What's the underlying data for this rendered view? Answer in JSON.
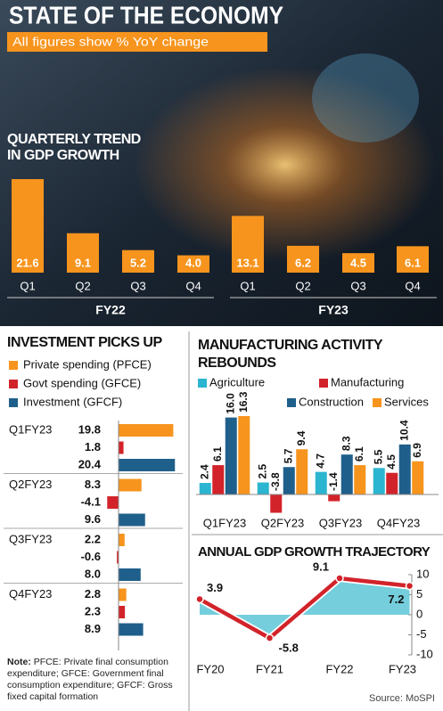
{
  "title": "STATE  OF THE ECONOMY",
  "subtitle": "All figures show % YoY change",
  "chart_data": [
    {
      "type": "bar",
      "title": "QUARTERLY TREND IN GDP GROWTH",
      "color": "#f7941d",
      "groups": [
        {
          "name": "FY22",
          "categories": [
            "Q1",
            "Q2",
            "Q3",
            "Q4"
          ],
          "values": [
            21.6,
            9.1,
            5.2,
            4.0
          ],
          "value_labels": [
            "21.6",
            "9.1",
            "5.2",
            "4.0"
          ]
        },
        {
          "name": "FY23",
          "categories": [
            "Q1",
            "Q2",
            "Q3",
            "Q4"
          ],
          "values": [
            13.1,
            6.2,
            4.5,
            6.1
          ],
          "value_labels": [
            "13.1",
            "6.2",
            "4.5",
            "6.1"
          ]
        }
      ]
    },
    {
      "type": "hbar",
      "title": "INVESTMENT PICKS UP",
      "categories": [
        "Q1FY23",
        "Q2FY23",
        "Q3FY23",
        "Q4FY23"
      ],
      "series": [
        {
          "name": "Private spending (PFCE)",
          "color": "#f7941d",
          "values": [
            19.8,
            8.3,
            2.2,
            2.8
          ]
        },
        {
          "name": "Govt spending (GFCE)",
          "color": "#d2232a",
          "values": [
            1.8,
            -4.1,
            -0.6,
            2.3
          ]
        },
        {
          "name": "Investment (GFCF)",
          "color": "#1f5f8b",
          "values": [
            20.4,
            9.6,
            8.0,
            8.9
          ],
          "value_labels": [
            "20.4",
            "9.6",
            "8.0",
            "8.9"
          ]
        }
      ],
      "note_label": "Note:",
      "note": "PFCE: Private final consumption expenditure; GFCE: Government final consumption expenditure; GFCF: Gross fixed capital formation"
    },
    {
      "type": "grouped-bar",
      "title": "MANUFACTURING ACTIVITY REBOUNDS",
      "categories": [
        "Q1FY23",
        "Q2FY23",
        "Q3FY23",
        "Q4FY23"
      ],
      "series": [
        {
          "name": "Agriculture",
          "color": "#2bb5d0",
          "values": [
            2.4,
            2.5,
            4.7,
            5.5
          ]
        },
        {
          "name": "Manufacturing",
          "color": "#d2232a",
          "values": [
            6.1,
            -3.8,
            -1.4,
            4.5
          ]
        },
        {
          "name": "Construction",
          "color": "#1f5f8b",
          "values": [
            16.0,
            5.7,
            8.3,
            10.4
          ],
          "value_labels": [
            "16.0",
            "5.7",
            "8.3",
            "10.4"
          ]
        },
        {
          "name": "Services",
          "color": "#f7941d",
          "values": [
            16.3,
            9.4,
            6.1,
            6.9
          ]
        }
      ]
    },
    {
      "type": "line",
      "title": "ANNUAL GDP GROWTH TRAJECTORY",
      "categories": [
        "FY20",
        "FY21",
        "FY22",
        "FY23"
      ],
      "values": [
        3.9,
        -5.8,
        9.1,
        7.2
      ],
      "color": "#d2232a",
      "fill": "#5cc6d6",
      "ylim": [
        -10,
        10
      ],
      "yticks": [
        10,
        5,
        0,
        -5,
        -10
      ]
    }
  ],
  "source": "Source: MoSPI"
}
